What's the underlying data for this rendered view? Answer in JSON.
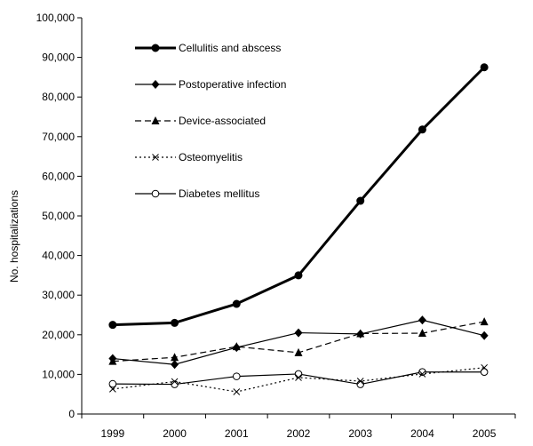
{
  "chart_data": {
    "type": "line",
    "title": "",
    "xlabel": "",
    "ylabel": "No. hospitalizations",
    "ylim": [
      0,
      100000
    ],
    "ytick_step": 10000,
    "grid": false,
    "legend_placement": "top-left",
    "x": [
      "1999",
      "2000",
      "2001",
      "2002",
      "2003",
      "2004",
      "2005"
    ],
    "y_tick_labels": [
      "0",
      "10,000",
      "20,000",
      "30,000",
      "40,000",
      "50,000",
      "60,000",
      "70,000",
      "80,000",
      "90,000",
      "100,000"
    ],
    "series": [
      {
        "name": "Cellulitis and abscess",
        "values": [
          22500,
          23000,
          27800,
          35000,
          53800,
          71800,
          87500
        ],
        "marker": "filled-circle",
        "line_style": "solid-thick",
        "color": "#000000"
      },
      {
        "name": "Postoperative infection",
        "values": [
          14000,
          12500,
          16800,
          20500,
          20200,
          23700,
          19800
        ],
        "marker": "filled-diamond",
        "line_style": "solid",
        "color": "#000000"
      },
      {
        "name": "Device-associated",
        "values": [
          13300,
          14300,
          17000,
          15500,
          20300,
          20400,
          23300
        ],
        "marker": "filled-triangle",
        "line_style": "dashed",
        "color": "#000000"
      },
      {
        "name": "Osteomyelitis",
        "values": [
          6300,
          8200,
          5600,
          9200,
          8300,
          10100,
          11700
        ],
        "marker": "x",
        "line_style": "dotted",
        "color": "#000000"
      },
      {
        "name": "Diabetes mellitus",
        "values": [
          7600,
          7500,
          9500,
          10100,
          7500,
          10600,
          10600
        ],
        "marker": "open-circle",
        "line_style": "solid",
        "color": "#000000"
      }
    ]
  }
}
